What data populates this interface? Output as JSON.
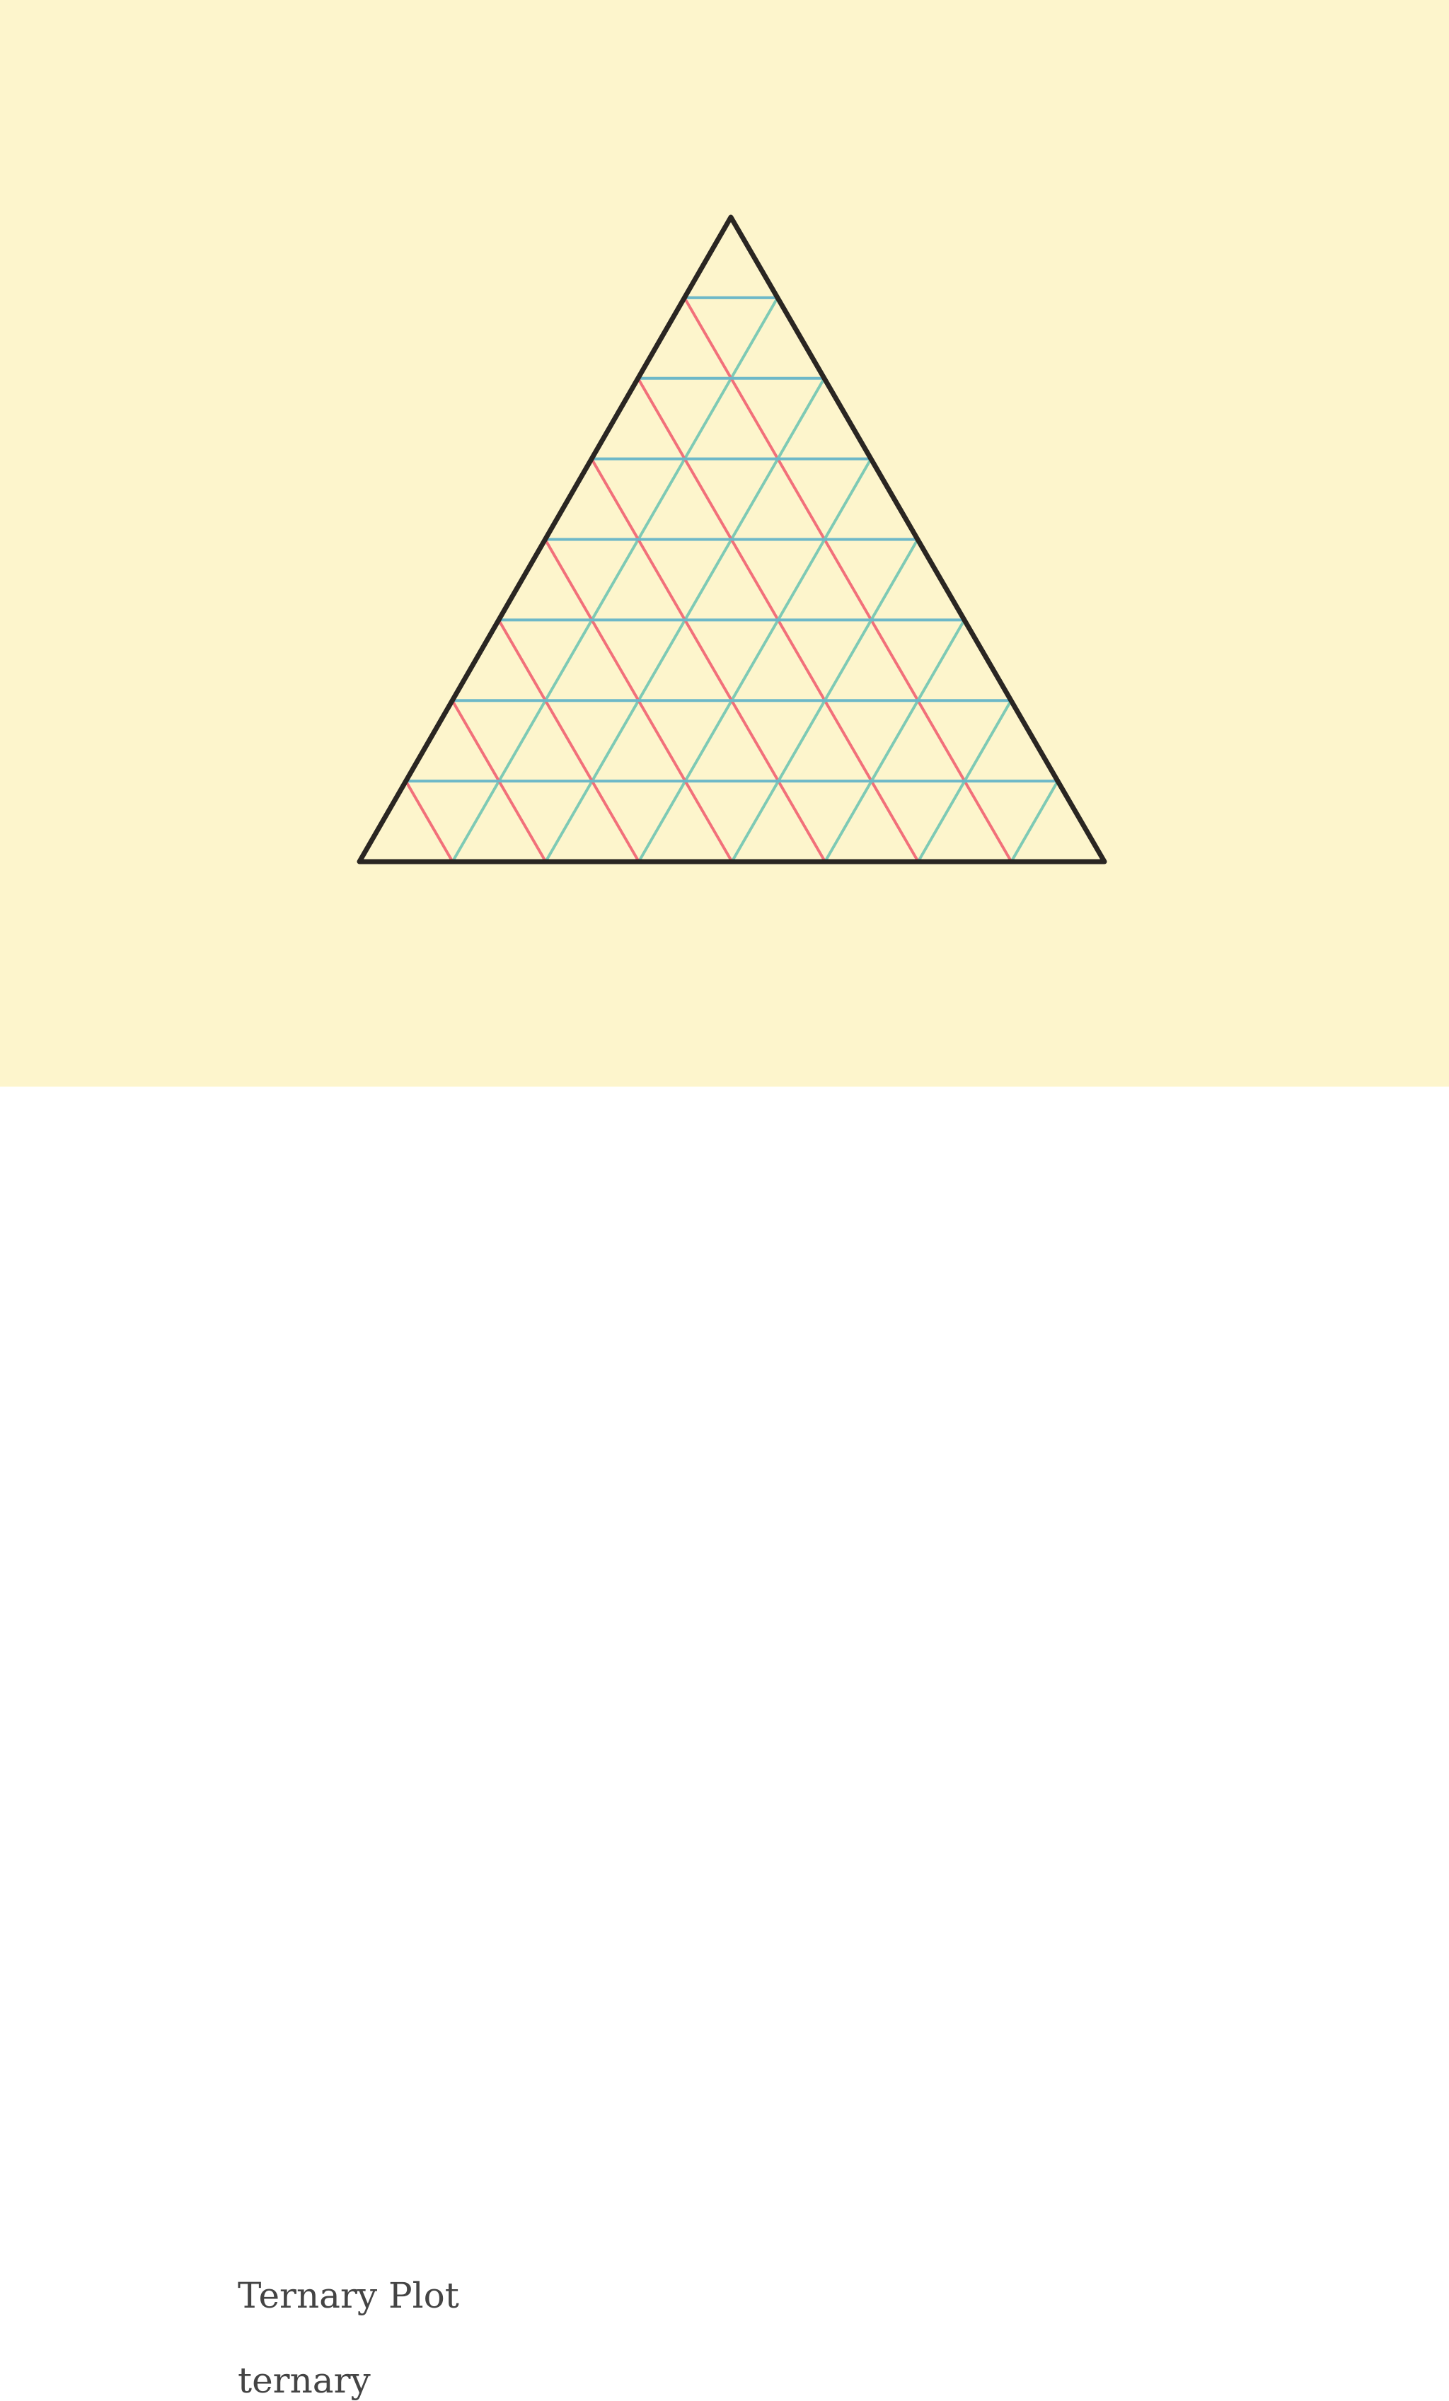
{
  "card": {
    "title": "Ternary Plot",
    "subtitle": "ternary"
  },
  "chart_data": {
    "type": "ternary",
    "grid_divisions": 8,
    "grid_on": true,
    "colors": {
      "background": "#fdf5cc",
      "frame": "#2a2622",
      "grid_a": "#6db8c8",
      "grid_b": "#7ecab5",
      "grid_c": "#f2707a"
    }
  }
}
